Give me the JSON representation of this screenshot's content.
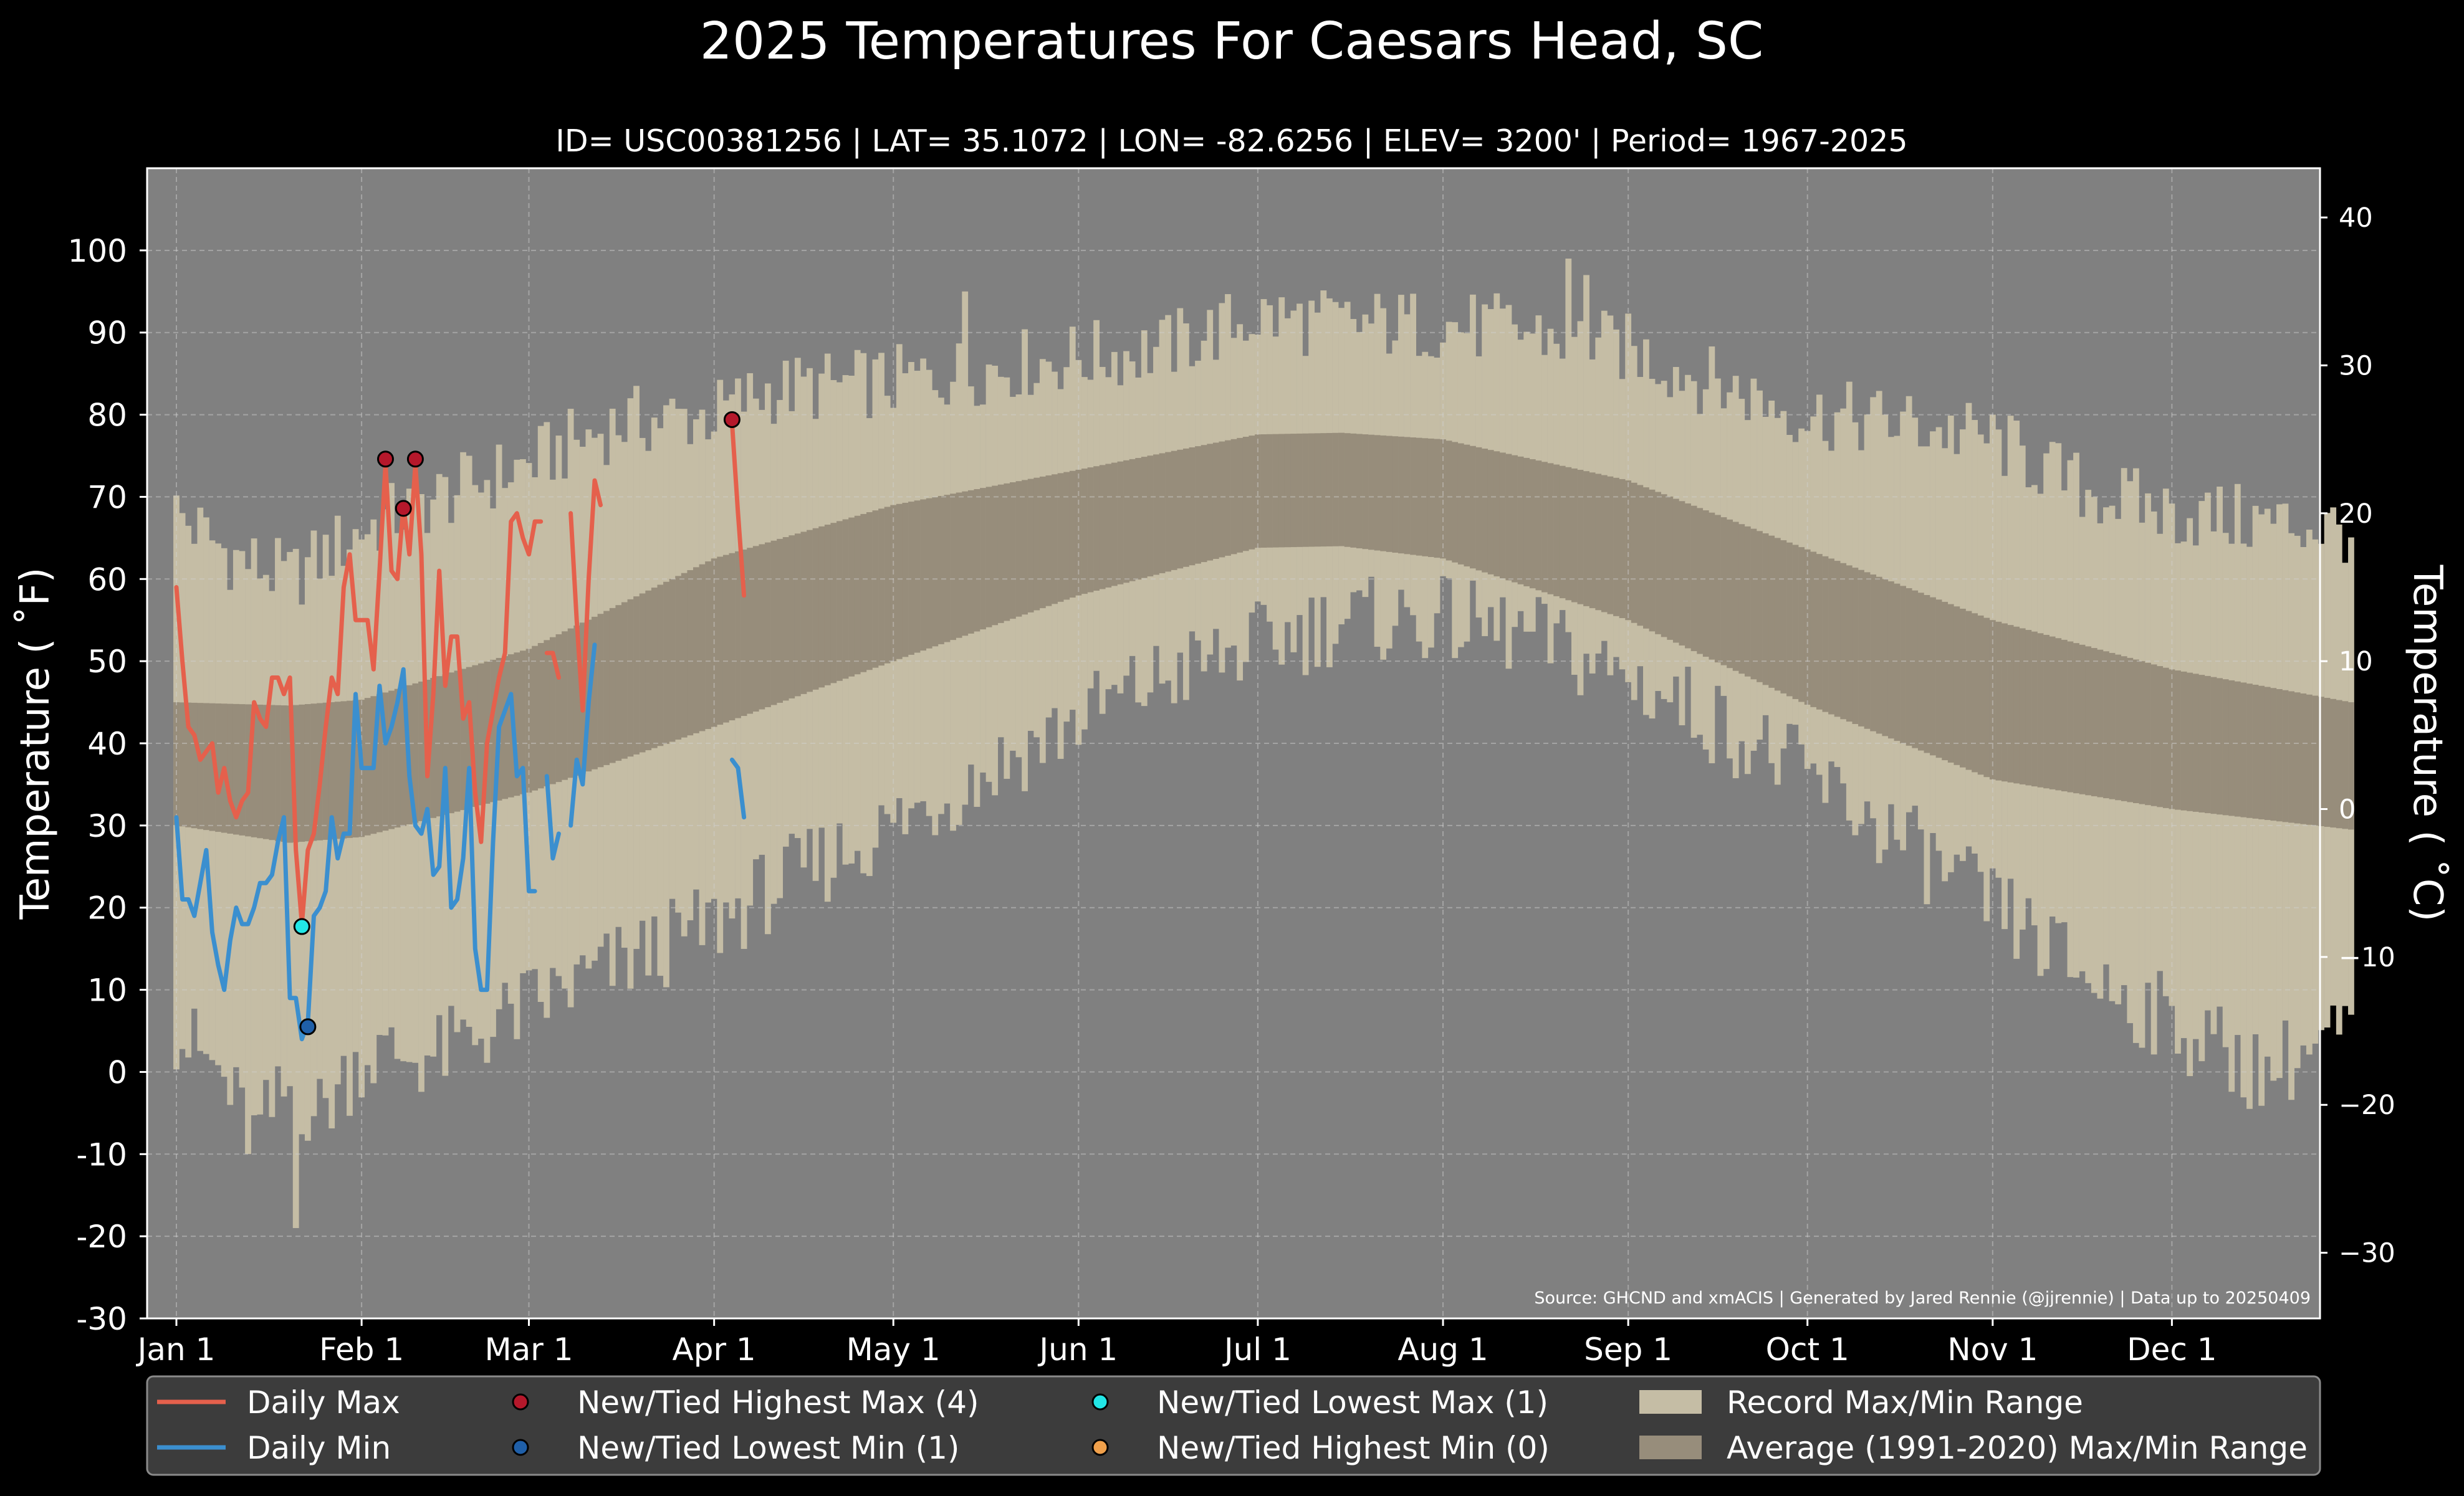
{
  "chart_data": {
    "type": "line",
    "title": "2025 Temperatures For Caesars Head, SC",
    "subtitle": "ID= USC00381256 | LAT= 35.1072 | LON= -82.6256 | ELEV= 3200' | Period= 1967-2025",
    "ylabel": "Temperature ($^\\circ$F)",
    "ylabel_display": "Temperature ( ˚F)",
    "ylabel_right": "Temperature ( ˚C)",
    "source": "Source: GHCND and xmACIS | Generated by Jared Rennie (@jjrennie) | Data up to 20250409",
    "ylim": [
      -30,
      110
    ],
    "ylim_c": [
      -34.44,
      43.33
    ],
    "y_ticks": [
      -30,
      -20,
      -10,
      0,
      10,
      20,
      30,
      40,
      50,
      60,
      70,
      80,
      90,
      100
    ],
    "y_tick_labels": [
      "-30",
      "-20",
      "-10",
      "0",
      "10",
      "20",
      "30",
      "40",
      "50",
      "60",
      "70",
      "80",
      "90",
      "100"
    ],
    "y_ticks_c": [
      -30,
      -20,
      -10,
      0,
      10,
      20,
      30,
      40
    ],
    "y_tick_labels_c": [
      "−30",
      "−20",
      "−10",
      "0",
      "10",
      "20",
      "30",
      "40"
    ],
    "x_ticks": [
      {
        "label": "Jan 1",
        "day": 1
      },
      {
        "label": "Feb 1",
        "day": 32
      },
      {
        "label": "Mar 1",
        "day": 60
      },
      {
        "label": "Apr 1",
        "day": 91
      },
      {
        "label": "May 1",
        "day": 121
      },
      {
        "label": "Jun 1",
        "day": 152
      },
      {
        "label": "Jul 1",
        "day": 182
      },
      {
        "label": "Aug 1",
        "day": 213
      },
      {
        "label": "Sep 1",
        "day": 244
      },
      {
        "label": "Oct 1",
        "day": 274
      },
      {
        "label": "Nov 1",
        "day": 305
      },
      {
        "label": "Dec 1",
        "day": 335
      }
    ],
    "grid": true,
    "legend_position": "bottom",
    "record_max_anchors": {
      "days": [
        1,
        10,
        20,
        32,
        45,
        60,
        75,
        91,
        100,
        121,
        140,
        152,
        166,
        182,
        196,
        213,
        228,
        244,
        258,
        274,
        290,
        305,
        320,
        335,
        350,
        365
      ],
      "values": [
        68,
        63,
        60,
        66,
        70,
        74,
        79,
        80,
        83,
        84,
        86,
        87,
        88,
        92,
        91,
        91,
        90,
        88,
        84,
        80,
        79,
        77,
        71,
        68,
        67,
        66
      ]
    },
    "record_min_anchors": {
      "days": [
        1,
        8,
        14,
        20,
        25,
        32,
        45,
        60,
        75,
        91,
        100,
        121,
        140,
        152,
        166,
        182,
        196,
        213,
        228,
        244,
        258,
        274,
        290,
        305,
        320,
        335,
        350,
        365
      ],
      "values": [
        5,
        0,
        -8,
        -2,
        -5,
        2,
        2,
        8,
        13,
        18,
        22,
        30,
        38,
        43,
        48,
        52,
        55,
        55,
        53,
        48,
        43,
        36,
        28,
        20,
        12,
        6,
        0,
        5
      ]
    },
    "record_max_spikes": [
      {
        "day": 133,
        "value": 95
      },
      {
        "day": 234,
        "value": 99
      },
      {
        "day": 237,
        "value": 97
      }
    ],
    "record_min_spikes": [
      {
        "day": 21,
        "value": -19
      }
    ],
    "avg_max_anchors": {
      "days": [
        1,
        20,
        32,
        60,
        91,
        121,
        152,
        182,
        196,
        213,
        244,
        274,
        305,
        335,
        365
      ],
      "values": [
        45,
        44.6,
        45.3,
        51.5,
        62.5,
        69,
        73.3,
        77.6,
        77.8,
        77,
        72,
        63.6,
        55,
        49,
        45
      ]
    },
    "avg_min_anchors": {
      "days": [
        1,
        20,
        32,
        60,
        91,
        121,
        152,
        182,
        196,
        213,
        244,
        274,
        305,
        335,
        365
      ],
      "values": [
        30,
        27.9,
        28.6,
        34,
        42,
        50,
        58,
        63.8,
        64,
        62.5,
        55,
        44.7,
        35.6,
        32,
        29.5
      ]
    },
    "series": [
      {
        "name": "Daily Max",
        "color": "#e5604c",
        "segments": [
          {
            "start_day": 1,
            "values": [
              59,
              50,
              42,
              41,
              38,
              39,
              40,
              34,
              37,
              33,
              31,
              33,
              34,
              45,
              43,
              42,
              48,
              48,
              46,
              48,
              27,
              18,
              27,
              29,
              35,
              42,
              48,
              46,
              59,
              63,
              55,
              55,
              55,
              49,
              61,
              74,
              61,
              60,
              69,
              63,
              74,
              63,
              36,
              46,
              61,
              47,
              53,
              53,
              43,
              45,
              34,
              28,
              40,
              44,
              48,
              51,
              67,
              68,
              65,
              63,
              67,
              67
            ]
          },
          {
            "start_day": 63,
            "values": [
              51,
              51,
              48
            ]
          },
          {
            "start_day": 67,
            "values": [
              68,
              55,
              44,
              60,
              72,
              69
            ]
          },
          {
            "start_day": 94,
            "values": [
              79,
              68,
              58
            ]
          }
        ]
      },
      {
        "name": "Daily Min",
        "color": "#3b8fcf",
        "segments": [
          {
            "start_day": 1,
            "values": [
              31,
              21,
              21,
              19,
              23,
              27,
              17,
              13,
              10,
              16,
              20,
              18,
              18,
              20,
              23,
              23,
              24,
              28,
              31,
              9,
              9,
              4,
              6,
              19,
              20,
              22,
              31,
              26,
              29,
              29,
              46,
              37,
              37,
              37,
              47,
              40,
              42,
              45,
              49,
              36,
              30,
              29,
              32,
              24,
              25,
              37,
              20,
              21,
              26,
              37,
              15,
              10,
              10,
              28,
              42,
              44,
              46,
              36,
              37,
              22,
              22
            ]
          },
          {
            "start_day": 63,
            "values": [
              36,
              26,
              29
            ]
          },
          {
            "start_day": 67,
            "values": [
              30,
              38,
              35,
              45,
              52
            ]
          },
          {
            "start_day": 94,
            "values": [
              38,
              37,
              31
            ]
          }
        ]
      }
    ],
    "markers": [
      {
        "type": "New/Tied Highest Max",
        "color": "#b5182b",
        "points": [
          {
            "day": 36,
            "value": 74.6
          },
          {
            "day": 39,
            "value": 68.6
          },
          {
            "day": 41,
            "value": 74.6
          },
          {
            "day": 94,
            "value": 79.4
          }
        ]
      },
      {
        "type": "New/Tied Lowest Min",
        "color": "#1f5fa8",
        "points": [
          {
            "day": 23,
            "value": 5.5
          }
        ]
      },
      {
        "type": "New/Tied Lowest Max",
        "color": "#22e6e6",
        "points": [
          {
            "day": 22,
            "value": 17.7
          }
        ]
      },
      {
        "type": "New/Tied Highest Min",
        "color": "#f0a04b",
        "points": []
      }
    ],
    "colors": {
      "background": "#000000",
      "plot_background": "#808080",
      "record_band": "#c5bda5",
      "average_band": "#978d7b",
      "legend_background": "#3c3c3c"
    },
    "legend": [
      {
        "label": "Daily Max",
        "kind": "line",
        "color": "#e5604c"
      },
      {
        "label": "Daily Min",
        "kind": "line",
        "color": "#3b8fcf"
      },
      {
        "label": "New/Tied Highest Max (4)",
        "kind": "dot",
        "color": "#b5182b"
      },
      {
        "label": "New/Tied Lowest Min (1)",
        "kind": "dot",
        "color": "#1f5fa8"
      },
      {
        "label": "New/Tied Lowest Max (1)",
        "kind": "dot",
        "color": "#22e6e6"
      },
      {
        "label": "New/Tied Highest Min (0)",
        "kind": "dot",
        "color": "#f0a04b"
      },
      {
        "label": "Record Max/Min Range",
        "kind": "patch",
        "color": "#c5bda5"
      },
      {
        "label": "Average (1991-2020) Max/Min Range",
        "kind": "patch",
        "color": "#978d7b"
      }
    ]
  }
}
